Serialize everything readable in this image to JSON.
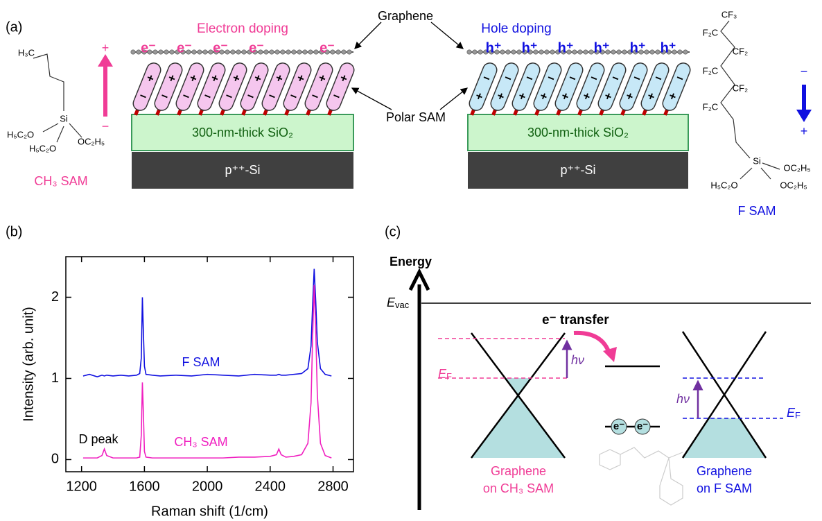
{
  "panel_a": {
    "label": "(a)",
    "electron_doping": "Electron doping",
    "hole_doping": "Hole doping",
    "graphene": "Graphene",
    "polar_sam": "Polar SAM",
    "electron": "e⁻",
    "hole": "h⁺",
    "plus": "+",
    "minus": "−",
    "sio2": "300-nm-thick SiO₂",
    "si": "p⁺⁺-Si",
    "ch3_sam": {
      "name": "CH₃ SAM",
      "atoms": [
        "H₃C",
        "Si",
        "H₅C₂O",
        "OC₂H₅",
        "H₅C₂O"
      ]
    },
    "f_sam": {
      "name": "F SAM",
      "atoms": [
        "CF₃",
        "F₂C",
        "CF₂",
        "F₂C",
        "CF₂",
        "F₂C",
        "Si",
        "OC₂H₅",
        "H₅C₂O",
        "OC₂H₅"
      ]
    }
  },
  "chart_data": {
    "type": "line",
    "panel_label": "(b)",
    "x_label": "Raman shift (1/cm)",
    "y_label": "Intensity (arb. unit)",
    "x": [
      1210,
      1250,
      1300,
      1330,
      1345,
      1360,
      1400,
      1450,
      1500,
      1550,
      1570,
      1580,
      1587,
      1593,
      1600,
      1610,
      1650,
      1700,
      1800,
      1900,
      2000,
      2100,
      2200,
      2300,
      2400,
      2440,
      2455,
      2470,
      2500,
      2550,
      2600,
      2640,
      2660,
      2670,
      2680,
      2690,
      2700,
      2720,
      2750,
      2790
    ],
    "series": [
      {
        "name": "F SAM",
        "color": "#1010e0",
        "values": [
          1.03,
          1.05,
          1.02,
          1.04,
          1.03,
          1.04,
          1.03,
          1.04,
          1.03,
          1.04,
          1.06,
          1.25,
          2.0,
          1.6,
          1.15,
          1.05,
          1.04,
          1.03,
          1.04,
          1.03,
          1.05,
          1.04,
          1.03,
          1.05,
          1.04,
          1.04,
          1.05,
          1.04,
          1.04,
          1.05,
          1.06,
          1.12,
          1.4,
          1.9,
          2.35,
          1.95,
          1.45,
          1.12,
          1.05,
          1.03
        ]
      },
      {
        "name": "CH₃ SAM",
        "color": "#f020c0",
        "values": [
          0.02,
          0.02,
          0.02,
          0.05,
          0.13,
          0.05,
          0.02,
          0.02,
          0.02,
          0.02,
          0.03,
          0.3,
          0.95,
          0.6,
          0.1,
          0.03,
          0.02,
          0.02,
          0.02,
          0.02,
          0.02,
          0.02,
          0.03,
          0.03,
          0.04,
          0.06,
          0.13,
          0.06,
          0.03,
          0.04,
          0.06,
          0.2,
          0.7,
          1.5,
          2.15,
          1.6,
          0.8,
          0.2,
          0.05,
          0.02
        ]
      }
    ],
    "annotation": "D peak",
    "xlim": [
      1100,
      2930
    ],
    "xticks": [
      1200,
      1600,
      2000,
      2400,
      2800
    ],
    "ylim": [
      -0.15,
      2.5
    ],
    "yticks": [
      0,
      1,
      2
    ]
  },
  "panel_c": {
    "label": "(c)",
    "energy": "Energy",
    "e_vac": {
      "main": "E",
      "sub": "vac"
    },
    "e_f": {
      "main": "E",
      "sub": "F"
    },
    "hv": "hν",
    "transfer": "e⁻ transfer",
    "electron": "e⁻",
    "left_caption": [
      "Graphene",
      "on CH₃ SAM"
    ],
    "right_caption": [
      "Graphene",
      "on F SAM"
    ]
  }
}
